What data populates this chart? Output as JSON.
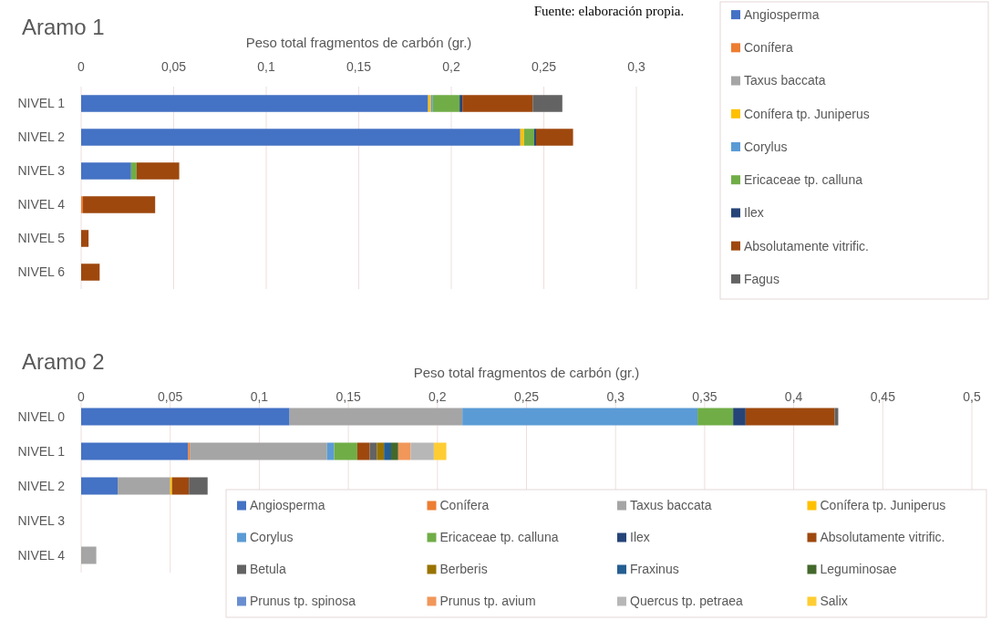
{
  "chart_data": [
    {
      "type": "bar",
      "title": "Aramo 1",
      "xlabel": "Peso total fragmentos de carbón (gr.)",
      "annotations": [
        "Fuente: elaboración propia."
      ],
      "orientation": "horizontal",
      "stacked": true,
      "grid": "x",
      "legend": "right",
      "categories": [
        "NIVEL 1",
        "NIVEL 2",
        "NIVEL 3",
        "NIVEL 4",
        "NIVEL 5",
        "NIVEL 6"
      ],
      "xlim": [
        0,
        0.3
      ],
      "xticks": [
        0,
        {
          "value": 0.05,
          "label": "0,05"
        },
        {
          "value": 0.1,
          "label": "0,1"
        },
        {
          "value": 0.15,
          "label": "0,15"
        },
        {
          "value": 0.2,
          "label": "0,2"
        },
        {
          "value": 0.25,
          "label": "0,25"
        },
        {
          "value": 0.3,
          "label": "0,3"
        }
      ],
      "series": [
        {
          "name": "Angiosperma",
          "color": "#4472c4",
          "values": [
            0.1875,
            0.2373,
            0.027,
            null,
            null,
            null
          ]
        },
        {
          "name": "Conífera",
          "color": "#ed7d31",
          "values": [
            null,
            null,
            null,
            0.001,
            null,
            null
          ]
        },
        {
          "name": "Taxus baccata",
          "color": "#a5a5a5",
          "values": [
            null,
            null,
            null,
            null,
            null,
            null
          ]
        },
        {
          "name": "Conífera tp. Juniperus",
          "color": "#ffc000",
          "values": [
            0.0015,
            0.002,
            null,
            null,
            null,
            null
          ]
        },
        {
          "name": "Corylus",
          "color": "#5b9bd5",
          "values": [
            0.001,
            null,
            null,
            null,
            null,
            null
          ]
        },
        {
          "name": "Ericaceae tp. calluna",
          "color": "#70ad47",
          "values": [
            0.0145,
            0.0055,
            0.003,
            null,
            null,
            null
          ]
        },
        {
          "name": "Ilex",
          "color": "#264478",
          "values": [
            0.0015,
            0.001,
            null,
            null,
            null,
            null
          ]
        },
        {
          "name": "Absolutamente vitrific.",
          "color": "#9e480e",
          "values": [
            0.038,
            0.02,
            0.023,
            0.039,
            0.004,
            0.01
          ]
        },
        {
          "name": "Fagus",
          "color": "#636363",
          "values": [
            0.016,
            null,
            null,
            null,
            null,
            null
          ]
        }
      ]
    },
    {
      "type": "bar",
      "title": "Aramo 2",
      "xlabel": "Peso total fragmentos de carbón (gr.)",
      "orientation": "horizontal",
      "stacked": true,
      "grid": "x",
      "legend": "bottom right",
      "categories": [
        "NIVEL 0",
        "NIVEL 1",
        "NIVEL 2",
        "NIVEL 3",
        "NIVEL 4"
      ],
      "xlim": [
        0,
        0.5
      ],
      "xticks": [
        0,
        {
          "value": 0.05,
          "label": "0,05"
        },
        {
          "value": 0.1,
          "label": "0,1"
        },
        {
          "value": 0.15,
          "label": "0,15"
        },
        {
          "value": 0.2,
          "label": "0,2"
        },
        {
          "value": 0.25,
          "label": "0,25"
        },
        {
          "value": 0.3,
          "label": "0,3"
        },
        {
          "value": 0.35,
          "label": "0,35"
        },
        {
          "value": 0.4,
          "label": "0,4"
        },
        {
          "value": 0.45,
          "label": "0,45"
        },
        {
          "value": 0.5,
          "label": "0,5"
        }
      ],
      "series": [
        {
          "name": "Angiosperma",
          "color": "#4472c4",
          "values": [
            0.117,
            0.06,
            0.0205,
            null,
            null
          ]
        },
        {
          "name": "Conífera",
          "color": "#ed7d31",
          "values": [
            null,
            0.001,
            null,
            null,
            null
          ]
        },
        {
          "name": "Taxus baccata",
          "color": "#a5a5a5",
          "values": [
            0.097,
            0.077,
            0.0295,
            null,
            0.0085
          ]
        },
        {
          "name": "Conífera tp. Juniperus",
          "color": "#ffc000",
          "values": [
            null,
            null,
            0.001,
            null,
            null
          ]
        },
        {
          "name": "Corylus",
          "color": "#5b9bd5",
          "values": [
            0.132,
            0.004,
            null,
            null,
            null
          ]
        },
        {
          "name": "Ericaceae tp. calluna",
          "color": "#70ad47",
          "values": [
            0.02,
            0.013,
            null,
            null,
            null
          ]
        },
        {
          "name": "Ilex",
          "color": "#264478",
          "values": [
            0.007,
            null,
            null,
            null,
            null
          ]
        },
        {
          "name": "Absolutamente vitrific.",
          "color": "#9e480e",
          "values": [
            0.05,
            0.007,
            0.0095,
            null,
            null
          ]
        },
        {
          "name": "Betula",
          "color": "#636363",
          "values": [
            0.002,
            0.004,
            0.0105,
            null,
            null
          ]
        },
        {
          "name": "Berberis",
          "color": "#997300",
          "values": [
            null,
            0.004,
            null,
            null,
            null
          ]
        },
        {
          "name": "Fraxinus",
          "color": "#255e91",
          "values": [
            null,
            0.004,
            null,
            null,
            null
          ]
        },
        {
          "name": "Leguminosae",
          "color": "#43682b",
          "values": [
            null,
            0.004,
            null,
            null,
            null
          ]
        },
        {
          "name": "Prunus tp. spinosa",
          "color": "#698ed0",
          "values": [
            null,
            null,
            null,
            null,
            null
          ]
        },
        {
          "name": "Prunus tp. avium",
          "color": "#f1975a",
          "values": [
            null,
            0.007,
            null,
            null,
            null
          ]
        },
        {
          "name": "Quercus tp. petraea",
          "color": "#b7b7b7",
          "values": [
            null,
            0.013,
            null,
            null,
            null
          ]
        },
        {
          "name": "Salix",
          "color": "#ffcd33",
          "values": [
            null,
            0.007,
            null,
            null,
            null
          ]
        }
      ]
    }
  ]
}
